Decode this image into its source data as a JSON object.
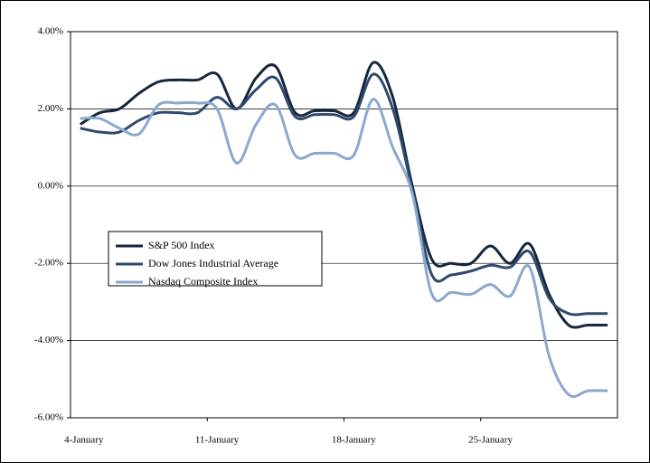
{
  "chart_data": {
    "type": "line",
    "categories": [
      null,
      null,
      null,
      null,
      null,
      null,
      null,
      "11-January",
      null,
      null,
      null,
      null,
      null,
      null,
      "18-January",
      null,
      null,
      null,
      null,
      null,
      null,
      "25-January",
      null,
      null,
      null,
      null,
      null,
      null
    ],
    "first_category": "4-January",
    "series": [
      {
        "name": "S&P 500 Index",
        "color": "#16263c",
        "values": [
          1.6,
          1.9,
          2.0,
          2.4,
          2.7,
          2.75,
          2.75,
          2.9,
          2.0,
          2.8,
          3.1,
          1.9,
          1.95,
          1.95,
          1.9,
          3.2,
          2.3,
          0.0,
          -1.9,
          -2.0,
          -2.0,
          -1.55,
          -2.0,
          -1.5,
          -2.8,
          -3.6,
          -3.6,
          -3.6
        ]
      },
      {
        "name": "Dow Jones Industrial Average",
        "color": "#2f4a6e",
        "values": [
          1.5,
          1.4,
          1.4,
          1.7,
          1.9,
          1.9,
          1.9,
          2.3,
          2.0,
          2.5,
          2.8,
          1.8,
          1.85,
          1.85,
          1.8,
          2.9,
          2.0,
          -0.1,
          -2.3,
          -2.3,
          -2.2,
          -2.05,
          -2.1,
          -1.7,
          -2.9,
          -3.3,
          -3.3,
          -3.3
        ]
      },
      {
        "name": "Nasdaq Composite Index",
        "color": "#8aa8d0",
        "values": [
          1.75,
          1.75,
          1.5,
          1.35,
          2.1,
          2.15,
          2.15,
          2.0,
          0.6,
          1.6,
          2.1,
          0.8,
          0.85,
          0.85,
          0.8,
          2.25,
          1.0,
          -0.2,
          -2.8,
          -2.75,
          -2.8,
          -2.55,
          -2.85,
          -2.1,
          -4.4,
          -5.4,
          -5.3,
          -5.3
        ]
      }
    ],
    "ylim": [
      -6,
      4
    ],
    "yticks": [
      {
        "value": -6,
        "label": "-6.00%"
      },
      {
        "value": -4,
        "label": "-4.00%"
      },
      {
        "value": -2,
        "label": "-2.00%"
      },
      {
        "value": 0,
        "label": "0.00%"
      },
      {
        "value": 2,
        "label": "2.00%"
      },
      {
        "value": 4,
        "label": "4.00%"
      }
    ],
    "grid": true
  }
}
